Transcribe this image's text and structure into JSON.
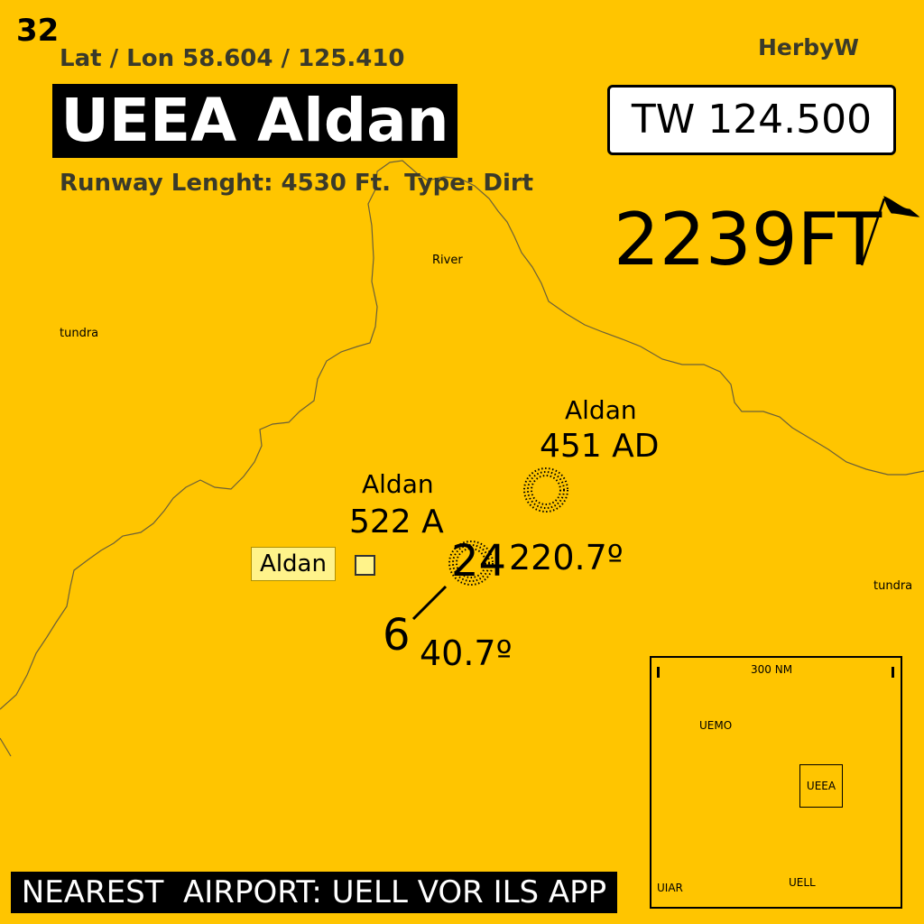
{
  "page_number": "32",
  "lat_lon": "Lat / Lon 58.604 / 125.410",
  "author": "HerbyW",
  "airport_title": "UEEA Aldan",
  "runway": {
    "length_text": "Runway Lenght: 4530 Ft.",
    "type_text": "Type: Dirt"
  },
  "tower_frequency": "TW 124.500",
  "elevation": "2239FT",
  "map_labels": {
    "river": "River",
    "tundra_west": "tundra",
    "tundra_east": "tundra"
  },
  "navaids": {
    "ad": {
      "name": "Aldan",
      "freq": "451 AD"
    },
    "a": {
      "name": "Aldan",
      "freq": "522 A"
    }
  },
  "town": {
    "name": "Aldan"
  },
  "runway_ends": {
    "end_24": {
      "number": "24",
      "heading": "220.7º"
    },
    "end_6": {
      "number": "6",
      "heading": "40.7º"
    }
  },
  "inset_map": {
    "scale": "300 NM",
    "airports": [
      "UEMO",
      "UIAR",
      "UELL"
    ],
    "current": "UEEA"
  },
  "nearest_airport": "NEAREST  AIRPORT: UELL VOR ILS APP",
  "colors": {
    "background": "#FFC500",
    "town_fill": "#FFF38A",
    "river_line": "#6b6038"
  },
  "icons": [
    "flag-icon",
    "ndb-symbol",
    "runway-line"
  ]
}
